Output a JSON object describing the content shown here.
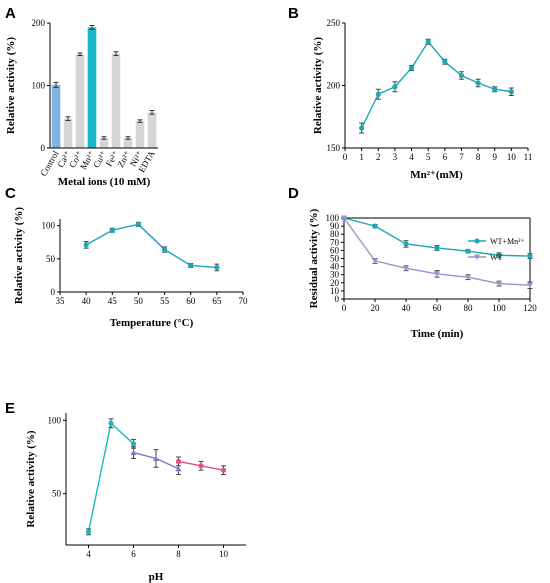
{
  "chart_data": [
    {
      "panel": "A",
      "type": "bar",
      "xlabel": "Metal ions (10 mM)",
      "ylabel": "Relative activity (%)",
      "ylim": [
        0,
        200
      ],
      "yticks": [
        0,
        100,
        200
      ],
      "categories": [
        "Control",
        "Ca²⁺",
        "Co²⁺",
        "Mn²⁺",
        "Cu²⁺",
        "Fe²⁺",
        "Zn²⁺",
        "Ni²⁺",
        "EDTA"
      ],
      "values": [
        101,
        47,
        150,
        193,
        16,
        151,
        16,
        43,
        57
      ],
      "errors": [
        4,
        3,
        2,
        3,
        2,
        3,
        2,
        2,
        3
      ],
      "colors": [
        "#7fb3e0",
        "#d6d6d6",
        "#d6d6d6",
        "#19b6c4",
        "#d6d6d6",
        "#d6d6d6",
        "#d6d6d6",
        "#d6d6d6",
        "#d6d6d6"
      ]
    },
    {
      "panel": "B",
      "type": "line",
      "xlabel": "Mn²⁺(mM)",
      "ylabel": "Relative activity (%)",
      "xlim": [
        0,
        11
      ],
      "xticks": [
        0,
        1,
        2,
        3,
        4,
        5,
        6,
        7,
        8,
        9,
        10,
        11
      ],
      "ylim": [
        150,
        250
      ],
      "yticks": [
        150,
        200,
        250
      ],
      "series": [
        {
          "x": [
            1,
            2,
            3,
            4,
            5,
            6,
            7,
            8,
            9,
            10
          ],
          "values": [
            166,
            193,
            199,
            214,
            235,
            219,
            208,
            202,
            197,
            195
          ],
          "errors": [
            4,
            4,
            4,
            2,
            2,
            2,
            3,
            3,
            2,
            3
          ],
          "color": "#19a8b4"
        }
      ]
    },
    {
      "panel": "C",
      "type": "line",
      "xlabel": "Temperature (°C)",
      "ylabel": "Relative activity (%)",
      "xlim": [
        35,
        70
      ],
      "xticks": [
        35,
        40,
        45,
        50,
        55,
        60,
        65,
        70
      ],
      "ylim": [
        0,
        110
      ],
      "yticks": [
        0,
        50,
        100
      ],
      "series": [
        {
          "x": [
            40,
            45,
            50,
            55,
            60,
            65
          ],
          "values": [
            71,
            93,
            102,
            64,
            40,
            37
          ],
          "errors": [
            5,
            3,
            3,
            4,
            3,
            5
          ],
          "color": "#19a8b4"
        }
      ]
    },
    {
      "panel": "D",
      "type": "line",
      "xlabel": "Time (min)",
      "ylabel": "Residual activity (%)",
      "xlim": [
        0,
        120
      ],
      "xticks": [
        0,
        20,
        40,
        60,
        80,
        100,
        120
      ],
      "ylim": [
        0,
        100
      ],
      "yticks": [
        0,
        10,
        20,
        30,
        40,
        50,
        60,
        70,
        80,
        90,
        100
      ],
      "legend": "top-right",
      "series": [
        {
          "name": "WT+Mn²⁺",
          "x": [
            0,
            20,
            40,
            60,
            80,
            100,
            120
          ],
          "values": [
            100,
            90,
            68,
            63,
            59,
            54,
            53
          ],
          "errors": [
            0,
            2,
            4,
            3,
            2,
            3,
            3
          ],
          "color": "#19a8b4",
          "marker": "circle"
        },
        {
          "name": "WT",
          "x": [
            0,
            20,
            40,
            60,
            80,
            100,
            120
          ],
          "values": [
            100,
            47,
            38,
            31,
            27,
            19,
            17
          ],
          "errors": [
            0,
            3,
            3,
            4,
            3,
            3,
            4
          ],
          "color": "#9a92cc",
          "marker": "triangle-down"
        }
      ]
    },
    {
      "panel": "E",
      "type": "line",
      "xlabel": "pH",
      "ylabel": "Relative activity (%)",
      "xlim": [
        3,
        11
      ],
      "xticks": [
        4,
        6,
        8,
        10
      ],
      "ylim": [
        15,
        105
      ],
      "yticks": [
        50,
        100
      ],
      "series": [
        {
          "x": [
            4,
            5,
            6
          ],
          "values": [
            24,
            98,
            84
          ],
          "errors": [
            2,
            3,
            3
          ],
          "color": "#19b6c4",
          "marker": "circle"
        },
        {
          "x": [
            6,
            7,
            8
          ],
          "values": [
            78,
            74,
            67
          ],
          "errors": [
            4,
            6,
            4
          ],
          "color": "#8178c2",
          "marker": "triangle"
        },
        {
          "x": [
            8,
            9,
            10
          ],
          "values": [
            72,
            69,
            66
          ],
          "errors": [
            3,
            3,
            3
          ],
          "color": "#e0508a",
          "marker": "circle"
        }
      ]
    }
  ]
}
